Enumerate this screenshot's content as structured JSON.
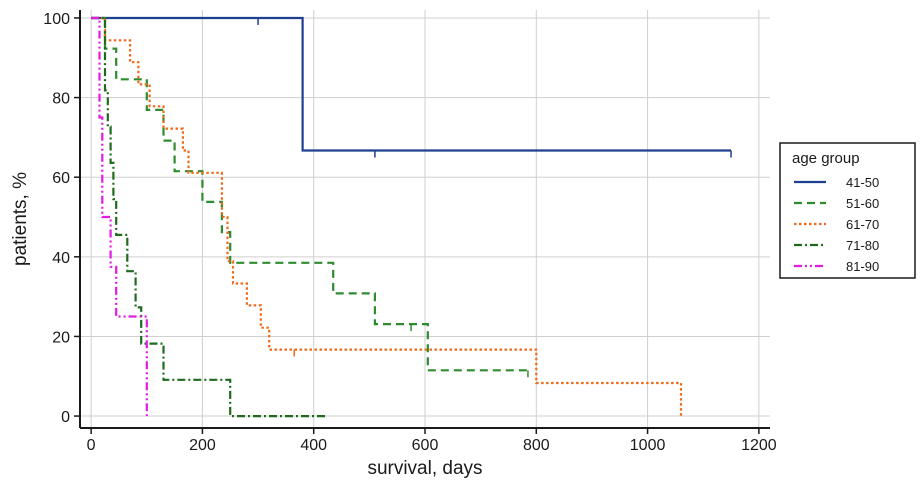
{
  "chart_data": {
    "type": "line",
    "step": true,
    "xlabel": "survival, days",
    "ylabel": "patients, %",
    "xlim": [
      -20,
      1220
    ],
    "ylim": [
      -3,
      102
    ],
    "xticks": [
      0,
      200,
      400,
      600,
      800,
      1000,
      1200
    ],
    "yticks": [
      0,
      20,
      40,
      60,
      80,
      100
    ],
    "grid": true,
    "legend": {
      "title": "age group",
      "position": "right"
    },
    "series": [
      {
        "name": "41-50",
        "color": "#1f3f8f",
        "dash": "solid",
        "x": [
          0,
          380,
          380,
          1150
        ],
        "y": [
          100,
          100,
          66.7,
          66.7
        ],
        "censored": [
          [
            300,
            100
          ],
          [
            510,
            66.7
          ],
          [
            1150,
            66.7
          ]
        ]
      },
      {
        "name": "51-60",
        "color": "#2e8b2e",
        "dash": "dashed",
        "x": [
          0,
          25,
          25,
          45,
          45,
          100,
          100,
          130,
          130,
          150,
          150,
          200,
          200,
          235,
          235,
          250,
          250,
          435,
          435,
          510,
          510,
          605,
          605,
          785
        ],
        "y": [
          100,
          100,
          92.3,
          92.3,
          84.6,
          84.6,
          76.9,
          76.9,
          69.2,
          69.2,
          61.5,
          61.5,
          53.8,
          53.8,
          46.2,
          46.2,
          38.5,
          38.5,
          30.8,
          30.8,
          23.1,
          23.1,
          11.5,
          11.5
        ],
        "censored": [
          [
            575,
            23.1
          ],
          [
            785,
            11.5
          ]
        ]
      },
      {
        "name": "61-70",
        "color": "#ef6a1a",
        "dash": "dotted",
        "x": [
          0,
          25,
          25,
          70,
          70,
          85,
          85,
          105,
          105,
          130,
          130,
          165,
          165,
          175,
          175,
          235,
          235,
          245,
          245,
          255,
          255,
          280,
          280,
          305,
          305,
          320,
          320,
          800,
          800,
          1060,
          1060
        ],
        "y": [
          100,
          100,
          94.4,
          94.4,
          88.9,
          88.9,
          83.3,
          83.3,
          77.8,
          77.8,
          72.2,
          72.2,
          66.7,
          66.7,
          61.1,
          61.1,
          50,
          50,
          38.9,
          38.9,
          33.3,
          33.3,
          27.8,
          27.8,
          22.2,
          22.2,
          16.7,
          16.7,
          8.3,
          8.3,
          0
        ],
        "censored": [
          [
            365,
            16.7
          ]
        ]
      },
      {
        "name": "71-80",
        "color": "#1e6b1e",
        "dash": "dashdot",
        "x": [
          0,
          25,
          25,
          30,
          30,
          35,
          35,
          40,
          40,
          45,
          45,
          65,
          65,
          80,
          80,
          90,
          90,
          130,
          130,
          250,
          250,
          425,
          425
        ],
        "y": [
          100,
          100,
          81.8,
          81.8,
          72.7,
          72.7,
          63.6,
          63.6,
          54.5,
          54.5,
          45.5,
          45.5,
          36.4,
          36.4,
          27.3,
          27.3,
          18.2,
          18.2,
          9.1,
          9.1,
          0,
          0,
          0
        ],
        "censored": []
      },
      {
        "name": "81-90",
        "color": "#e21ae2",
        "dash": "dashdotdot",
        "x": [
          0,
          15,
          15,
          20,
          20,
          35,
          35,
          45,
          45,
          100,
          100
        ],
        "y": [
          100,
          100,
          75,
          75,
          50,
          50,
          37.5,
          37.5,
          25,
          25,
          0
        ],
        "censored": []
      }
    ]
  }
}
